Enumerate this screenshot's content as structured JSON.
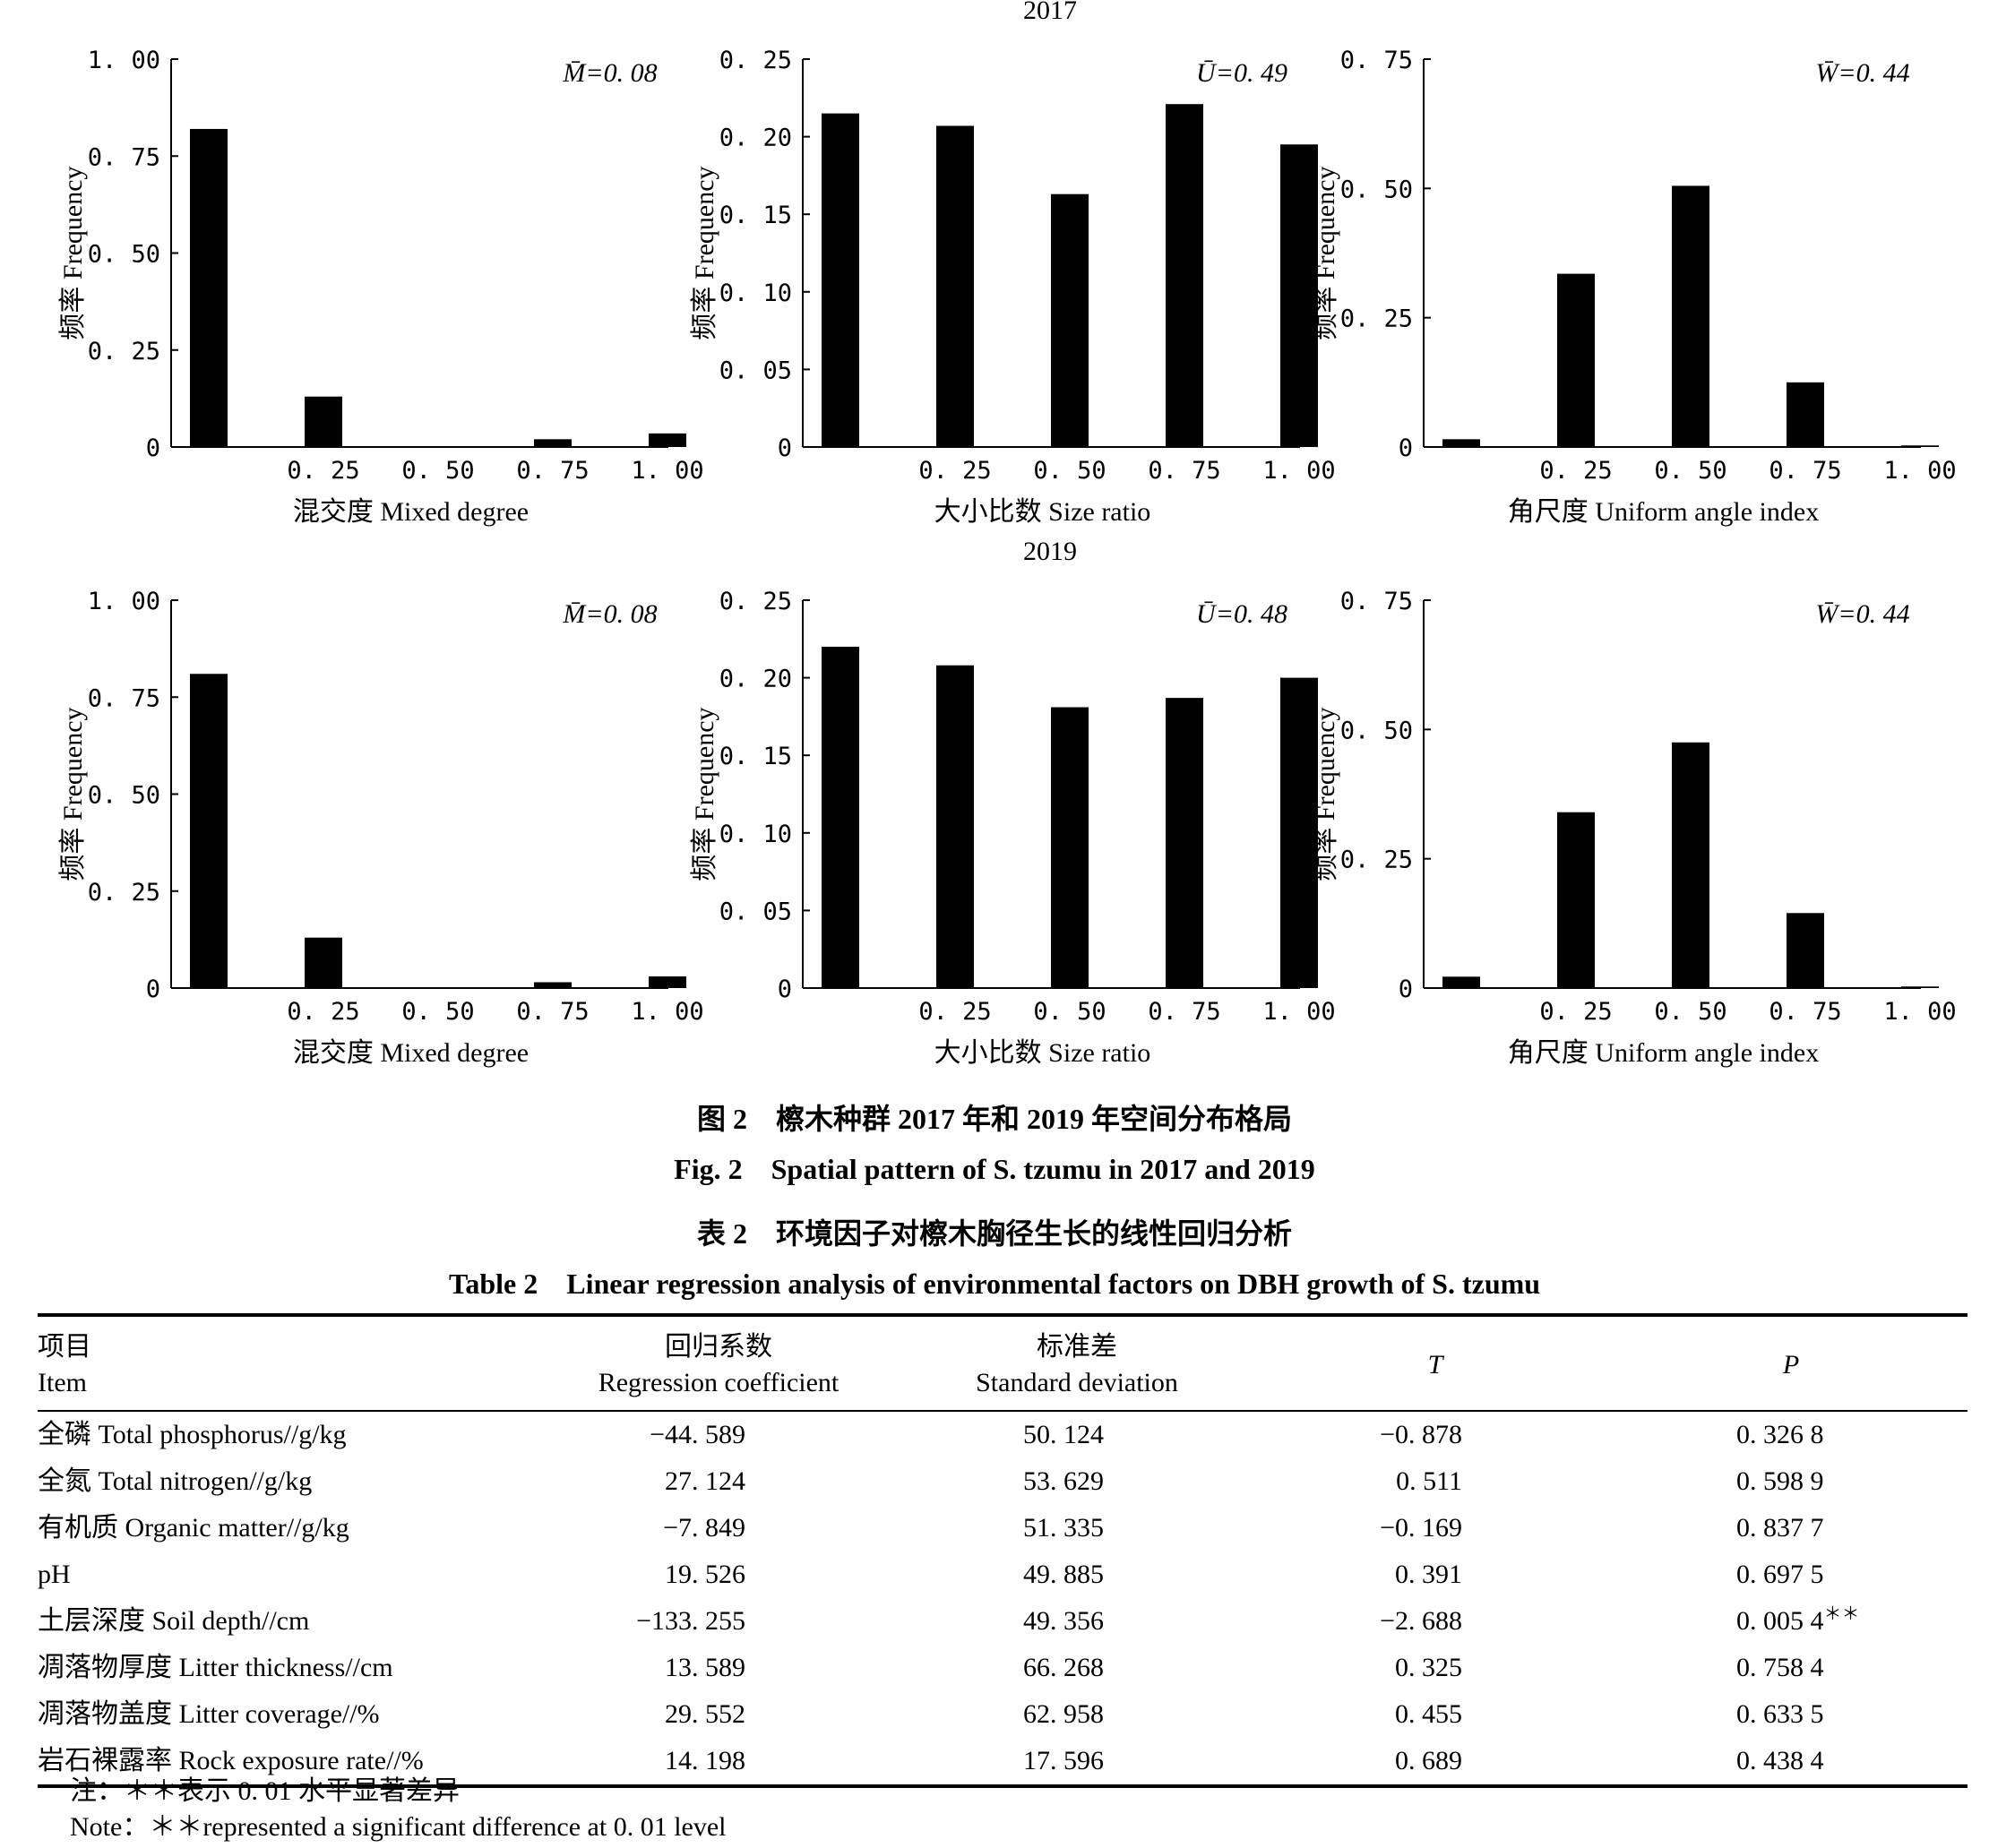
{
  "figure": {
    "panel_rows": [
      {
        "year": "2017"
      },
      {
        "year": "2019"
      }
    ],
    "ylabel": "频率 Frequency",
    "caption_cn": "图 2　檫木种群 2017 年和 2019 年空间分布格局",
    "caption_en": "Fig. 2　Spatial pattern of S. tzumu in 2017 and 2019",
    "bar_color": "#000000"
  },
  "chart_data": [
    {
      "type": "bar",
      "group": "2017",
      "title": "2017",
      "xlabel": "混交度 Mixed degree",
      "ylabel": "频率 Frequency",
      "annotation": "M̄=0. 08",
      "x": [
        0,
        0.25,
        0.5,
        0.75,
        1.0
      ],
      "values": [
        0.82,
        0.13,
        0,
        0.02,
        0.035
      ],
      "xticks": [
        "0. 25",
        "0. 50",
        "0. 75",
        "1. 00"
      ],
      "yticks": [
        "0",
        "0. 25",
        "0. 50",
        "0. 75",
        "1. 00"
      ],
      "ylim": [
        0,
        1.0
      ]
    },
    {
      "type": "bar",
      "group": "2017",
      "xlabel": "大小比数 Size ratio",
      "ylabel": "频率 Frequency",
      "annotation": "Ū=0. 49",
      "x": [
        0,
        0.25,
        0.5,
        0.75,
        1.0
      ],
      "values": [
        0.215,
        0.207,
        0.163,
        0.221,
        0.195
      ],
      "xticks": [
        "0. 25",
        "0. 50",
        "0. 75",
        "1. 00"
      ],
      "yticks": [
        "0",
        "0. 05",
        "0. 10",
        "0. 15",
        "0. 20",
        "0. 25"
      ],
      "ylim": [
        0,
        0.25
      ]
    },
    {
      "type": "bar",
      "group": "2017",
      "xlabel": "角尺度 Uniform angle index",
      "ylabel": "频率 Frequency",
      "annotation": "W̄=0. 44",
      "x": [
        0,
        0.25,
        0.5,
        0.75,
        1.0
      ],
      "values": [
        0.015,
        0.335,
        0.505,
        0.125,
        0.003
      ],
      "xticks": [
        "0. 25",
        "0. 50",
        "0. 75",
        "1. 00"
      ],
      "yticks": [
        "0",
        "0. 25",
        "0. 50",
        "0. 75"
      ],
      "ylim": [
        0,
        0.75
      ]
    },
    {
      "type": "bar",
      "group": "2019",
      "title": "2019",
      "xlabel": "混交度 Mixed degree",
      "ylabel": "频率 Frequency",
      "annotation": "M̄=0. 08",
      "x": [
        0,
        0.25,
        0.5,
        0.75,
        1.0
      ],
      "values": [
        0.81,
        0.13,
        0,
        0.015,
        0.03
      ],
      "xticks": [
        "0. 25",
        "0. 50",
        "0. 75",
        "1. 00"
      ],
      "yticks": [
        "0",
        "0. 25",
        "0. 50",
        "0. 75",
        "1. 00"
      ],
      "ylim": [
        0,
        1.0
      ]
    },
    {
      "type": "bar",
      "group": "2019",
      "xlabel": "大小比数 Size ratio",
      "ylabel": "频率 Frequency",
      "annotation": "Ū=0. 48",
      "x": [
        0,
        0.25,
        0.5,
        0.75,
        1.0
      ],
      "values": [
        0.22,
        0.208,
        0.181,
        0.187,
        0.2
      ],
      "xticks": [
        "0. 25",
        "0. 50",
        "0. 75",
        "1. 00"
      ],
      "yticks": [
        "0",
        "0. 05",
        "0. 10",
        "0. 15",
        "0. 20",
        "0. 25"
      ],
      "ylim": [
        0,
        0.25
      ]
    },
    {
      "type": "bar",
      "group": "2019",
      "xlabel": "角尺度 Uniform angle index",
      "ylabel": "频率 Frequency",
      "annotation": "W̄=0. 44",
      "x": [
        0,
        0.25,
        0.5,
        0.75,
        1.0
      ],
      "values": [
        0.022,
        0.34,
        0.475,
        0.145,
        0.003
      ],
      "xticks": [
        "0. 25",
        "0. 50",
        "0. 75",
        "1. 00"
      ],
      "yticks": [
        "0",
        "0. 25",
        "0. 50",
        "0. 75"
      ],
      "ylim": [
        0,
        0.75
      ]
    }
  ],
  "table": {
    "caption_cn": "表 2　环境因子对檫木胸径生长的线性回归分析",
    "caption_en": "Table 2　Linear regression analysis of environmental factors on DBH growth of S. tzumu",
    "headers": [
      {
        "cn": "项目",
        "en": "Item"
      },
      {
        "cn": "回归系数",
        "en": "Regression coefficient"
      },
      {
        "cn": "标准差",
        "en": "Standard deviation"
      },
      {
        "cn": "",
        "en": "T"
      },
      {
        "cn": "",
        "en": "P"
      }
    ],
    "rows": [
      {
        "item": "全磷 Total phosphorus//g/kg",
        "coef": "−44. 589",
        "sd": "50. 124",
        "t": "−0. 878",
        "p": "0. 326 8",
        "sig": ""
      },
      {
        "item": "全氮 Total nitrogen//g/kg",
        "coef": "27. 124",
        "sd": "53. 629",
        "t": "0. 511",
        "p": "0. 598 9",
        "sig": ""
      },
      {
        "item": "有机质 Organic matter//g/kg",
        "coef": "−7. 849",
        "sd": "51. 335",
        "t": "−0. 169",
        "p": "0. 837 7",
        "sig": ""
      },
      {
        "item": "pH",
        "coef": "19. 526",
        "sd": "49. 885",
        "t": "0. 391",
        "p": "0. 697 5",
        "sig": ""
      },
      {
        "item": "土层深度 Soil depth//cm",
        "coef": "−133. 255",
        "sd": "49. 356",
        "t": "−2. 688",
        "p": "0. 005 4",
        "sig": "＊＊"
      },
      {
        "item": "凋落物厚度 Litter thickness//cm",
        "coef": "13. 589",
        "sd": "66. 268",
        "t": "0. 325",
        "p": "0. 758 4",
        "sig": ""
      },
      {
        "item": "凋落物盖度 Litter coverage//%",
        "coef": "29. 552",
        "sd": "62. 958",
        "t": "0. 455",
        "p": "0. 633 5",
        "sig": ""
      },
      {
        "item": "岩石裸露率 Rock exposure rate//%",
        "coef": "14. 198",
        "sd": "17. 596",
        "t": "0. 689",
        "p": "0. 438 4",
        "sig": ""
      }
    ],
    "note_cn": "注：＊＊表示 0. 01 水平显著差异",
    "note_en": "Note：＊＊represented a significant difference at 0. 01 level"
  }
}
